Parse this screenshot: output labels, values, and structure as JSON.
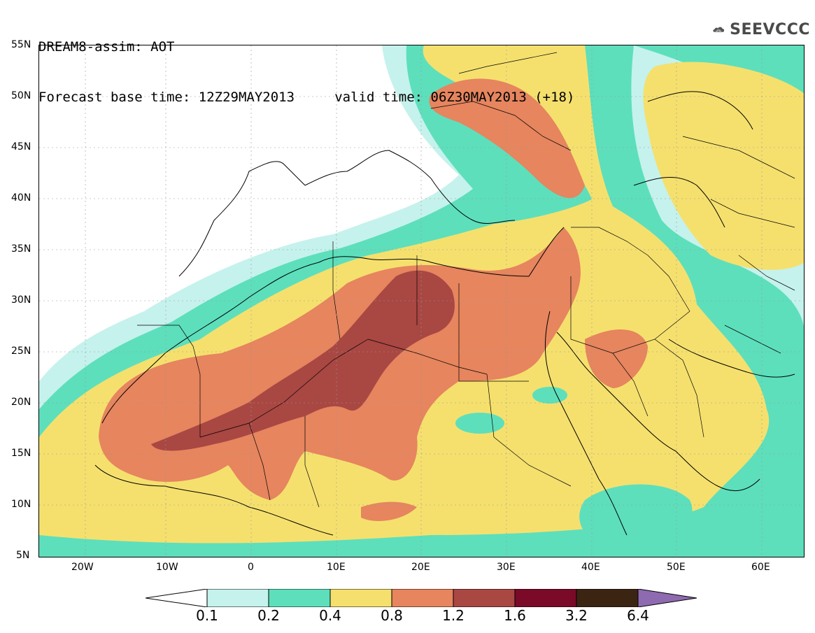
{
  "title": {
    "line1": "DREAM8-assim: AOT",
    "line2": "Forecast base time: 12Z29MAY2013     valid time: 06Z30MAY2013 (+18)"
  },
  "logo": {
    "text": "SEEVCCC",
    "icon": "cloud-logo-icon"
  },
  "map": {
    "lat_labels": [
      "55N",
      "50N",
      "45N",
      "40N",
      "35N",
      "30N",
      "25N",
      "20N",
      "15N",
      "10N",
      "5N"
    ],
    "lon_labels": [
      "20W",
      "10W",
      "0",
      "10E",
      "20E",
      "30E",
      "40E",
      "50E",
      "60E"
    ]
  },
  "colorbar": {
    "levels": [
      "0.1",
      "0.2",
      "0.4",
      "0.8",
      "1.2",
      "1.6",
      "3.2",
      "6.4"
    ],
    "colors": [
      "#ffffff",
      "#c5f2ec",
      "#5ddfbc",
      "#f5e06e",
      "#e6855e",
      "#a94743",
      "#7a0a28",
      "#3c2413",
      "#8e6ab0"
    ]
  }
}
